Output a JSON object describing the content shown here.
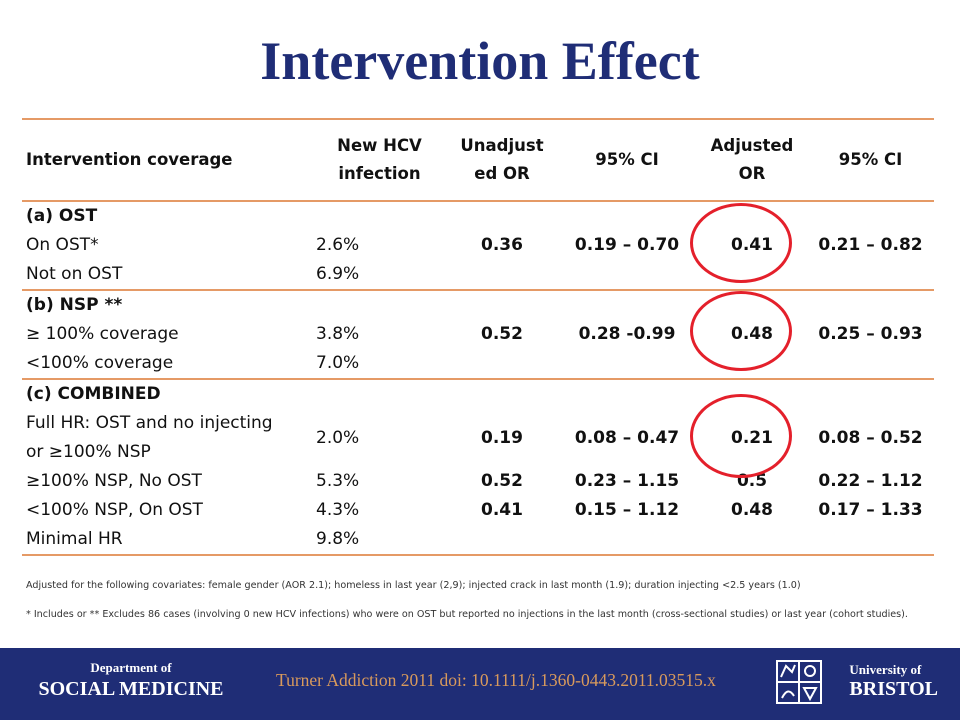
{
  "slide": {
    "title": "Intervention Effect"
  },
  "table": {
    "headers": [
      "Intervention coverage",
      "New HCV infection",
      "Unadjust ed OR",
      "95% CI",
      "Adjusted OR",
      "95% CI"
    ],
    "header_lines": [
      [
        "Intervention coverage"
      ],
      [
        "New HCV",
        "infection"
      ],
      [
        "Unadjust",
        "ed OR"
      ],
      [
        "95% CI"
      ],
      [
        "Adjusted",
        "OR"
      ],
      [
        "95% CI"
      ]
    ],
    "sections": [
      {
        "heading": "(a) OST",
        "rows": [
          {
            "label": "On OST*",
            "new_hcv": "2.6%",
            "unadj_or": "0.36",
            "ci1": "0.19 – 0.70",
            "adj_or": "0.41",
            "ci2": "0.21 – 0.82"
          },
          {
            "label": "Not on OST",
            "new_hcv": "6.9%",
            "unadj_or": "",
            "ci1": "",
            "adj_or": "",
            "ci2": ""
          }
        ]
      },
      {
        "heading": "(b) NSP **",
        "rows": [
          {
            "label": "≥ 100% coverage",
            "new_hcv": "3.8%",
            "unadj_or": "0.52",
            "ci1": "0.28 -0.99",
            "adj_or": "0.48",
            "ci2": "0.25 – 0.93"
          },
          {
            "label": "<100% coverage",
            "new_hcv": "7.0%",
            "unadj_or": "",
            "ci1": "",
            "adj_or": "",
            "ci2": ""
          }
        ]
      },
      {
        "heading": "(c) COMBINED",
        "rows": [
          {
            "label_line1": "Full HR: OST and no injecting",
            "label_line2": "or ≥100% NSP",
            "new_hcv": "2.0%",
            "unadj_or": "0.19",
            "ci1": "0.08 – 0.47",
            "adj_or": "0.21",
            "ci2": "0.08 – 0.52"
          },
          {
            "label": "≥100% NSP, No OST",
            "new_hcv": "5.3%",
            "unadj_or": "0.52",
            "ci1": "0.23 – 1.15",
            "adj_or": "0.5",
            "ci2": "0.22 – 1.12"
          },
          {
            "label": "<100% NSP, On OST",
            "new_hcv": "4.3%",
            "unadj_or": "0.41",
            "ci1": "0.15 – 1.12",
            "adj_or": "0.48",
            "ci2": "0.17 – 1.33"
          },
          {
            "label": "Minimal HR",
            "new_hcv": "9.8%",
            "unadj_or": "",
            "ci1": "",
            "adj_or": "",
            "ci2": ""
          }
        ]
      }
    ]
  },
  "footnotes": {
    "adjusted": "Adjusted for the following covariates: female gender (AOR 2.1); homeless in last year (2,9); injected crack in last month (1.9); duration injecting <2.5 years  (1.0)",
    "includes": "* Includes or ** Excludes 86 cases (involving 0 new HCV infections) who were on OST but reported no injections in the last month (cross-sectional studies) or last year (cohort studies)."
  },
  "footer": {
    "dept_small": "Department of",
    "dept_big": "SOCIAL MEDICINE",
    "citation": "Turner Addiction  2011 doi: 10.1111/j.1360-0443.2011.03515.x",
    "uni_small": "University of",
    "uni_big": "BRISTOL",
    "background_color": "#1f2d76",
    "citation_color": "#d99a5c"
  },
  "colors": {
    "title": "#1f2d76",
    "rules": "#e59a66",
    "circles": "#e4202b"
  }
}
